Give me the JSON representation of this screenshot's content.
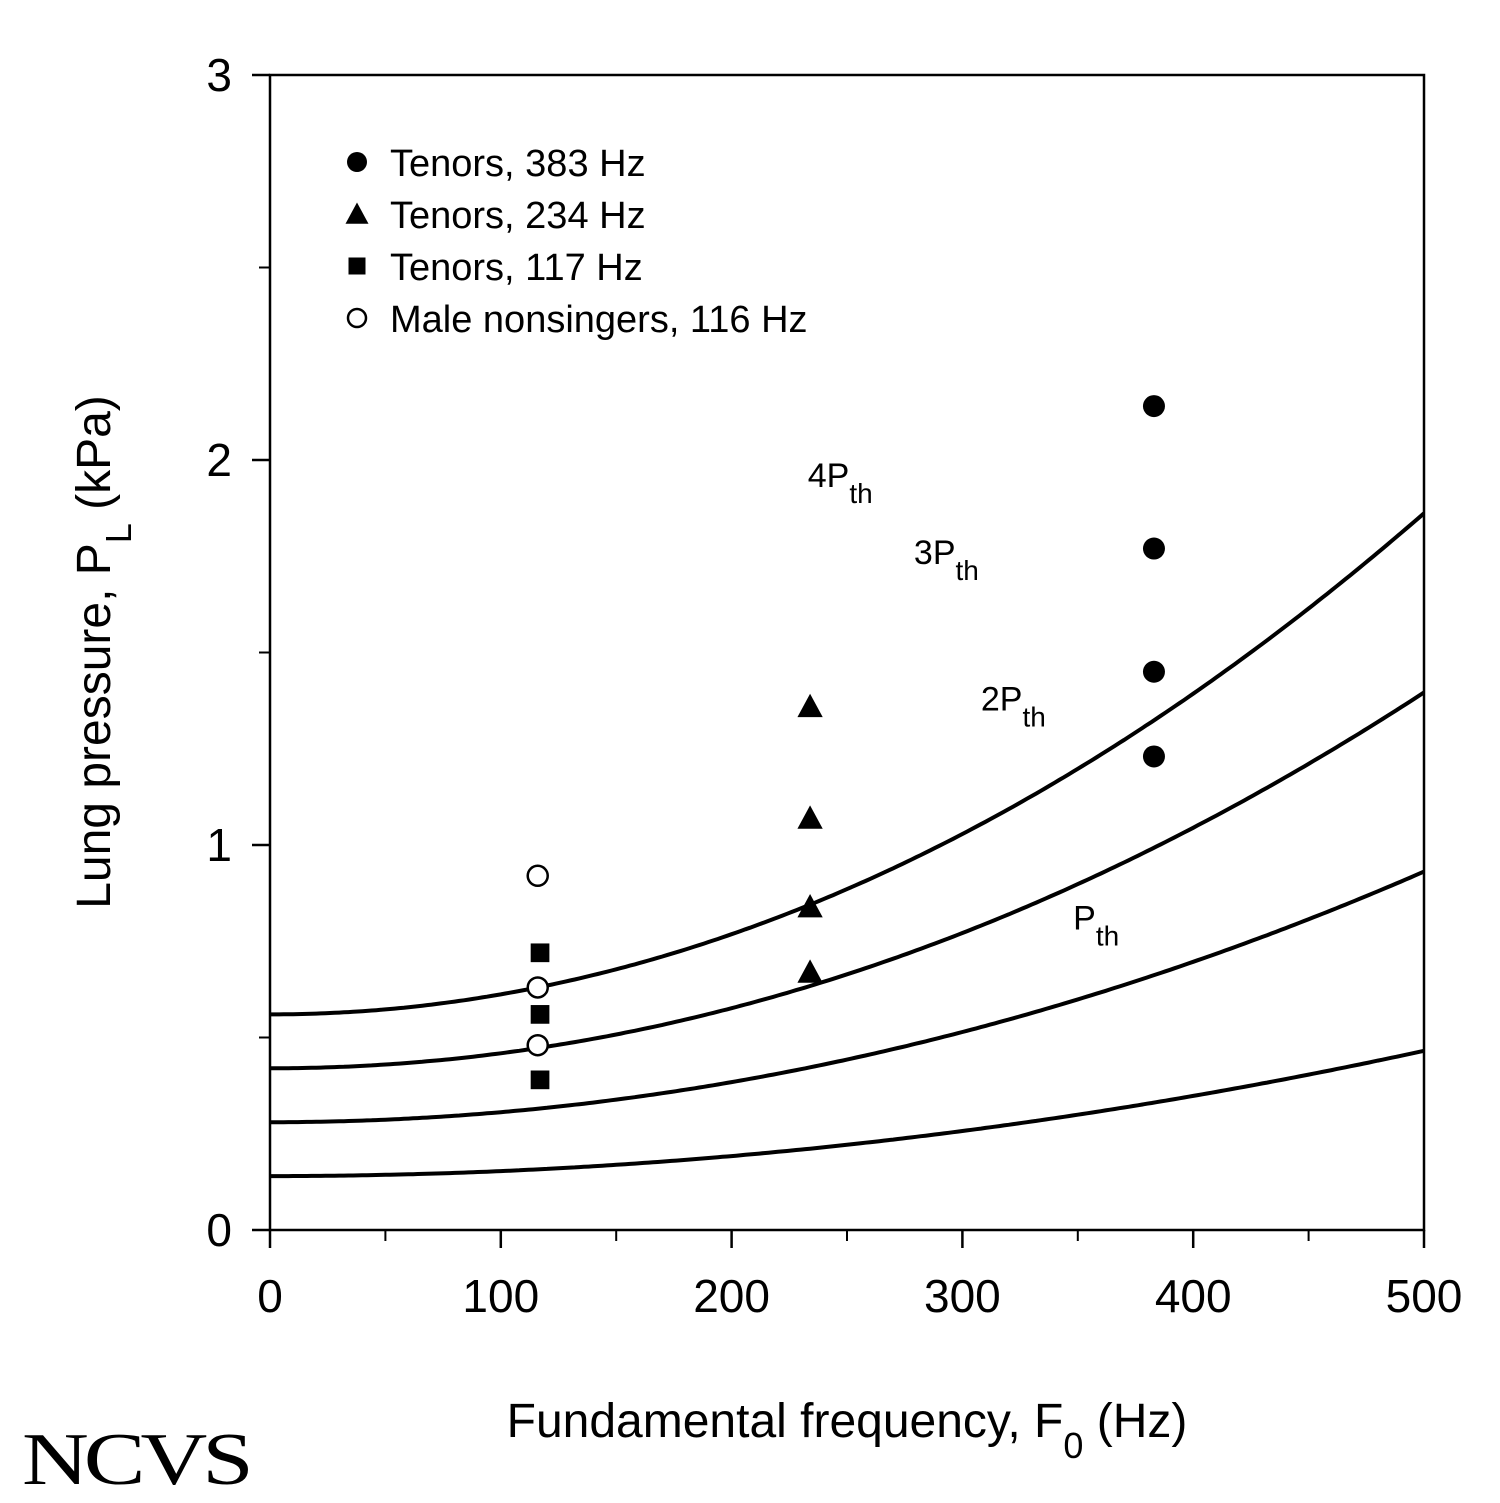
{
  "chart_data": {
    "type": "scatter",
    "xlabel": {
      "main": "Fundamental frequency, F",
      "sub": "0",
      "unit": " (Hz)"
    },
    "ylabel": {
      "main": "Lung pressure, P",
      "sub": "L",
      "unit": " (kPa)"
    },
    "xlim": [
      0,
      500
    ],
    "ylim": [
      0,
      3
    ],
    "xticks": [
      0,
      100,
      200,
      300,
      400,
      500
    ],
    "yticks": [
      0,
      1,
      2,
      3
    ],
    "xminor_step": 50,
    "yminor_step": 0.5,
    "grid": false,
    "legend_position": "top-left",
    "series": [
      {
        "name": "Tenors, 383 Hz",
        "marker": "filled-circle",
        "points": [
          [
            383,
            2.14
          ],
          [
            383,
            1.77
          ],
          [
            383,
            1.45
          ],
          [
            383,
            1.23
          ]
        ]
      },
      {
        "name": "Tenors, 234 Hz",
        "marker": "filled-triangle",
        "points": [
          [
            234,
            1.36
          ],
          [
            234,
            1.07
          ],
          [
            234,
            0.84
          ],
          [
            234,
            0.67
          ]
        ]
      },
      {
        "name": "Tenors, 117 Hz",
        "marker": "filled-square",
        "points": [
          [
            117,
            0.72
          ],
          [
            117,
            0.56
          ],
          [
            117,
            0.39
          ]
        ]
      },
      {
        "name": "Male nonsingers, 116 Hz",
        "marker": "open-circle",
        "points": [
          [
            116,
            0.92
          ],
          [
            116,
            0.63
          ],
          [
            116,
            0.48
          ]
        ]
      }
    ],
    "curves": [
      {
        "label_main": "P",
        "label_sub": "th",
        "multiplier": 1
      },
      {
        "label_main": "2P",
        "label_sub": "th",
        "multiplier": 2
      },
      {
        "label_main": "3P",
        "label_sub": "th",
        "multiplier": 3
      },
      {
        "label_main": "4P",
        "label_sub": "th",
        "multiplier": 4
      }
    ],
    "threshold_model": {
      "p0": 0.14,
      "c": 1.8,
      "f_ref": 440
    }
  },
  "logo": "NCVS",
  "colors": {
    "ink": "#000000",
    "background": "#ffffff"
  }
}
